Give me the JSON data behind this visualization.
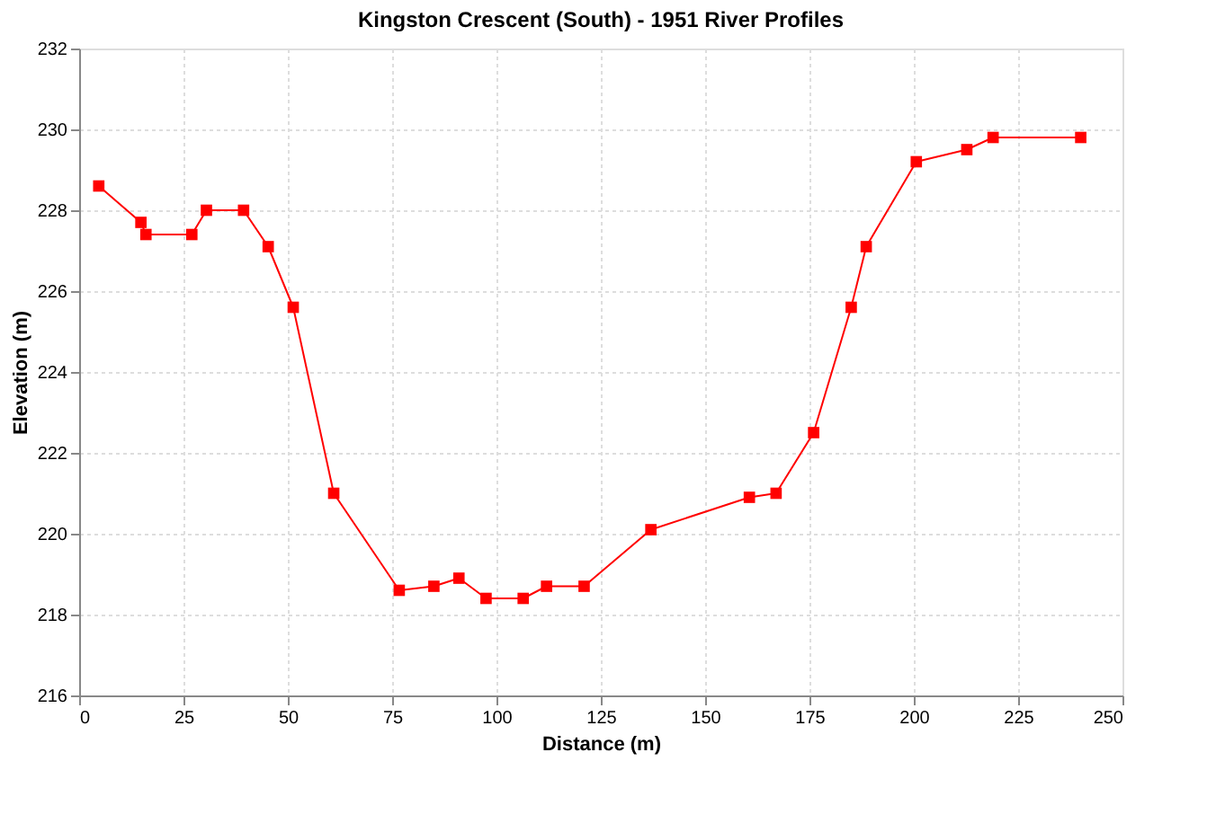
{
  "chart_data": {
    "type": "line",
    "title": "Kingston Crescent (South) - 1951 River Profiles",
    "xlabel": "Distance (m)",
    "ylabel": "Elevation (m)",
    "x": [
      4.7,
      14.8,
      16,
      27,
      30.5,
      39.4,
      45.3,
      51.3,
      61,
      76.7,
      85,
      91,
      97.5,
      106.4,
      112,
      121,
      137,
      160.6,
      167,
      176,
      185,
      188.6,
      200.6,
      212.7,
      219,
      240
    ],
    "series": [
      {
        "color": "#ff0000",
        "values": [
          228.6,
          227.7,
          227.4,
          227.4,
          228,
          228,
          227.1,
          225.6,
          221,
          218.6,
          218.7,
          218.9,
          218.4,
          218.4,
          218.7,
          218.7,
          220.1,
          220.9,
          221,
          222.5,
          225.6,
          227.1,
          229.2,
          229.5,
          229.8,
          229.8
        ]
      }
    ],
    "xlim": [
      0,
      250
    ],
    "xticks": [
      0,
      25,
      50,
      75,
      100,
      125,
      150,
      175,
      200,
      225,
      250
    ],
    "ylim": [
      216,
      232
    ],
    "yticks": [
      216,
      218,
      220,
      222,
      224,
      226,
      228,
      230,
      232
    ],
    "grid": true,
    "marker": "square",
    "line_style": "solid"
  }
}
